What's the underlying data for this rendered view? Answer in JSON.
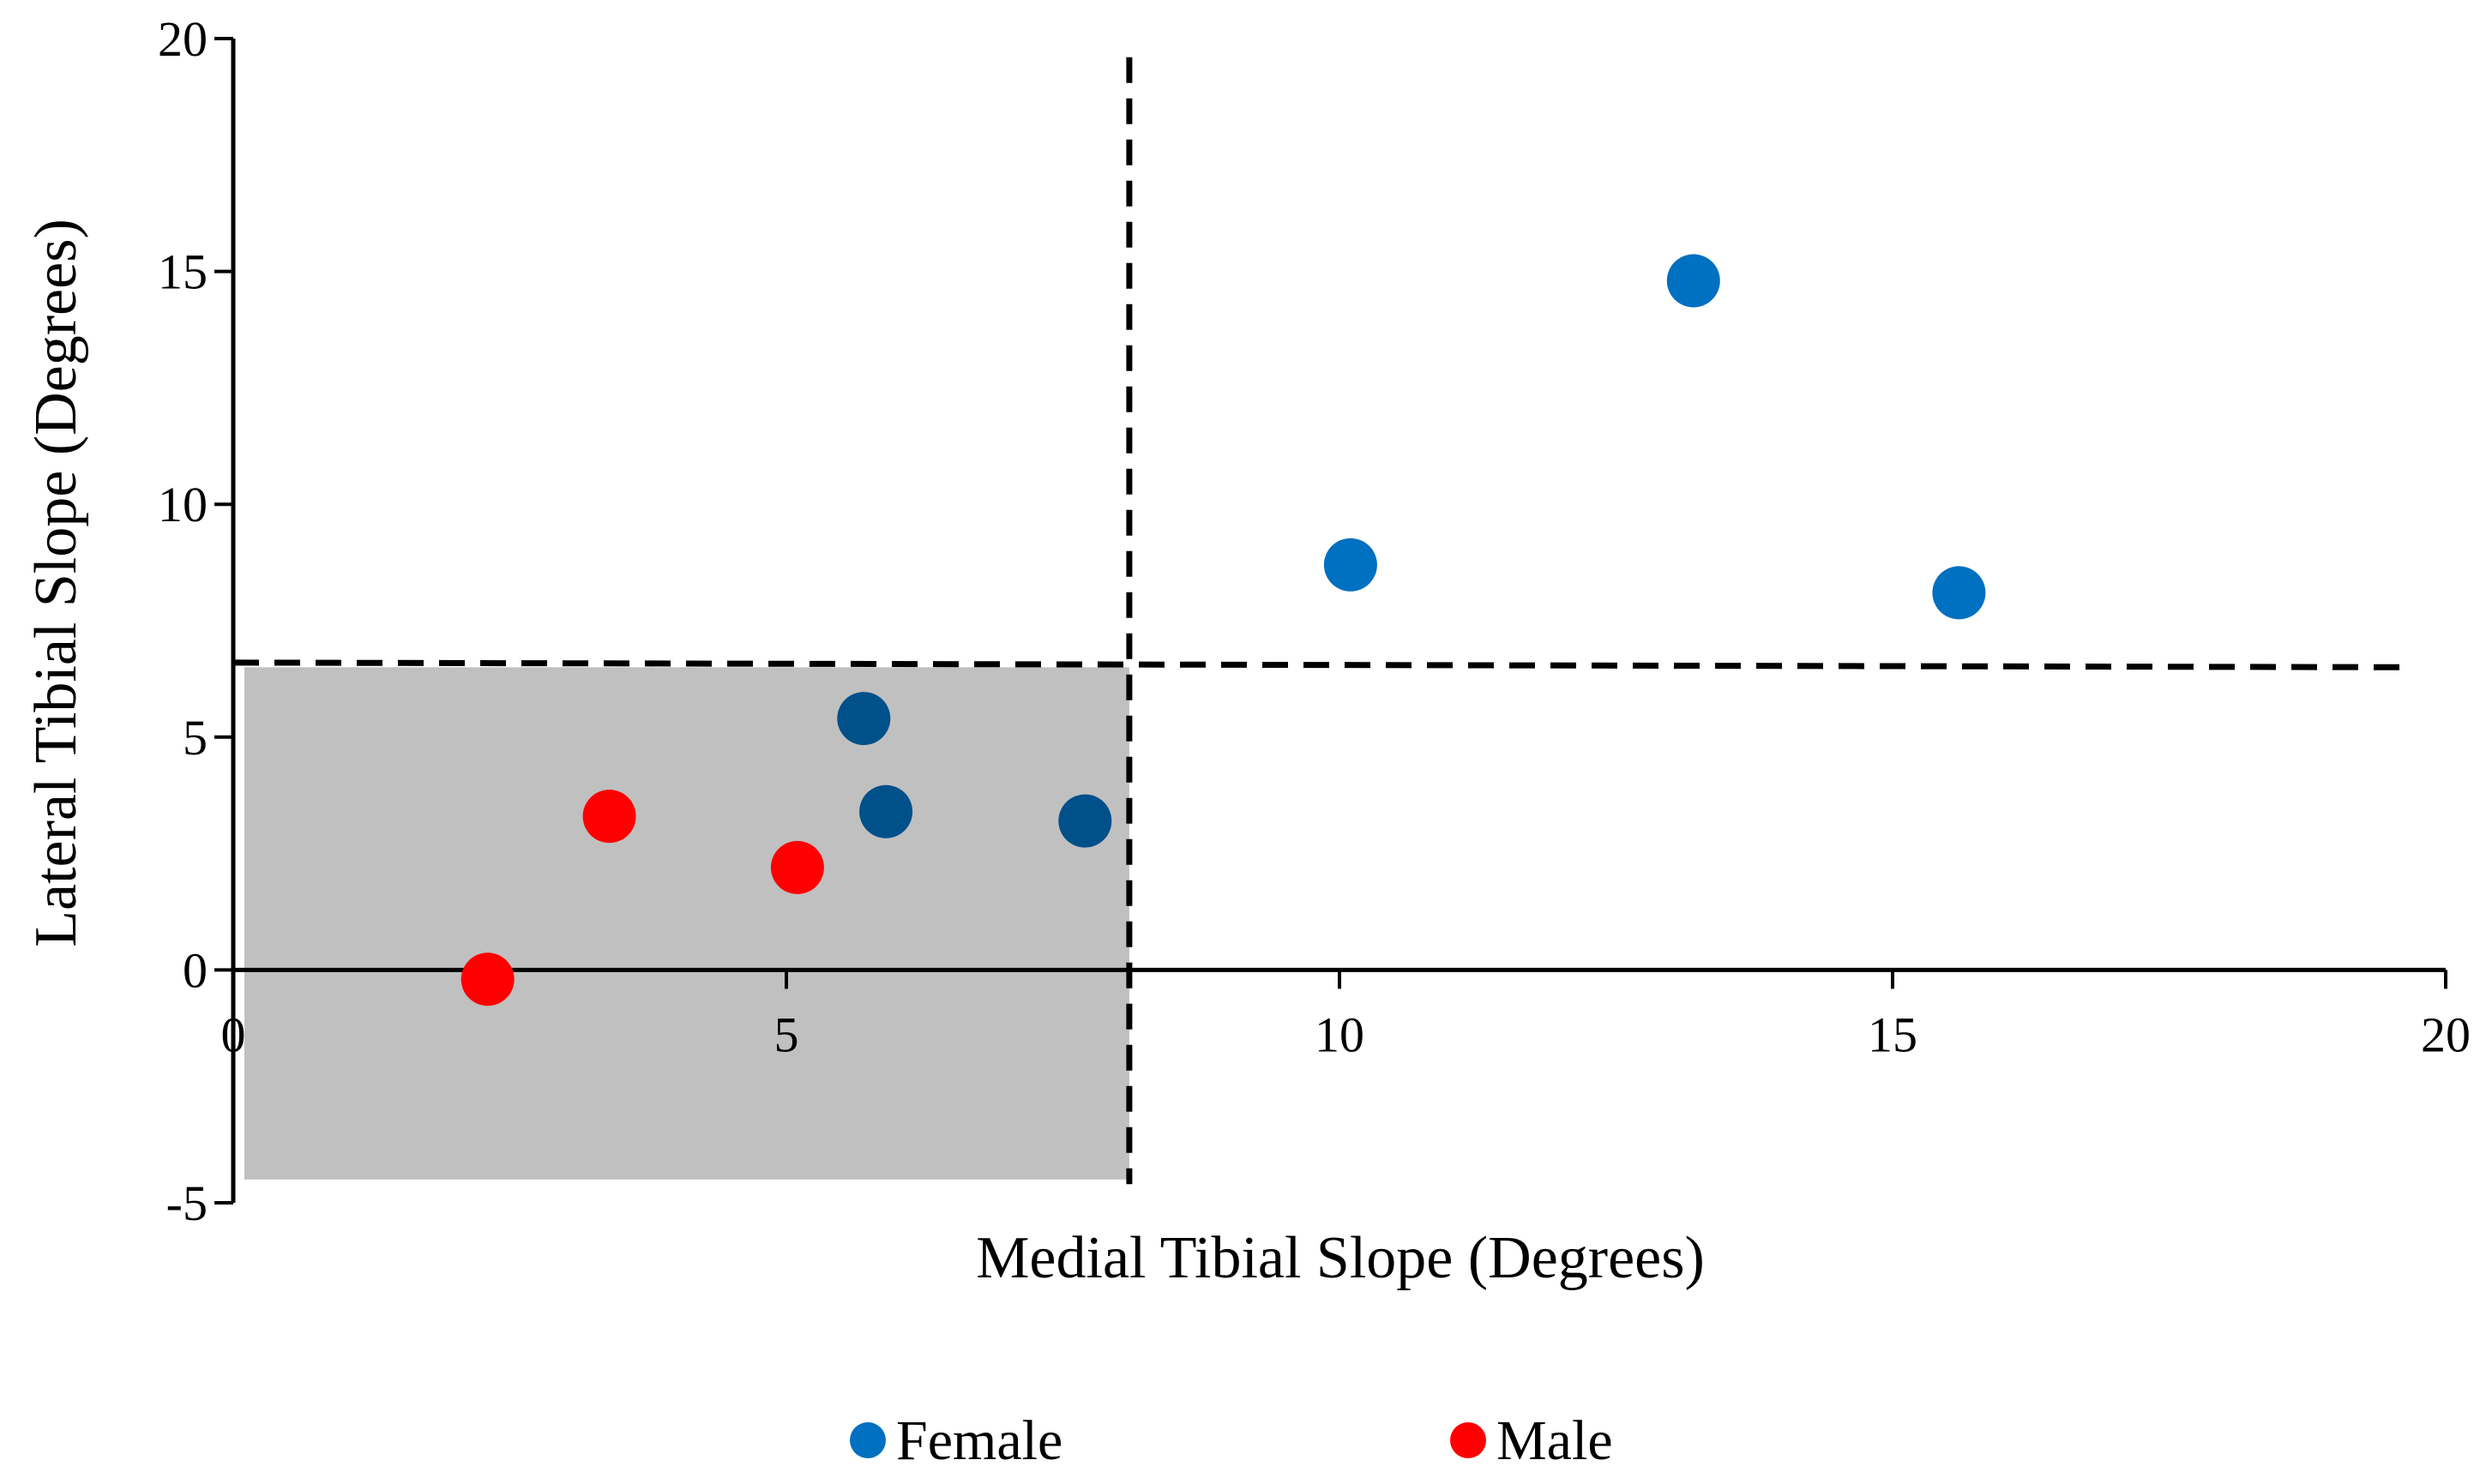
{
  "chart_data": {
    "type": "scatter",
    "title": "",
    "xlabel": "Medial Tibial Slope (Degrees)",
    "ylabel": "Lateral Tibial Slope (Degrees)",
    "xlim": [
      0,
      20
    ],
    "ylim": [
      -5,
      20
    ],
    "x_ticks": [
      0,
      5,
      10,
      15,
      20
    ],
    "y_ticks": [
      -5,
      0,
      5,
      10,
      15,
      20
    ],
    "x_tick_labels": [
      "0",
      "5",
      "10",
      "15",
      "20"
    ],
    "y_tick_labels": [
      "-5",
      "0",
      "5",
      "10",
      "15",
      "20"
    ],
    "grid": false,
    "legend_position": "bottom",
    "series": [
      {
        "name": "Female",
        "color": "#0070C0",
        "shaded_color": "#00508A",
        "points": [
          {
            "x": 5.7,
            "y": 5.4
          },
          {
            "x": 5.9,
            "y": 3.4
          },
          {
            "x": 7.7,
            "y": 3.2
          },
          {
            "x": 10.1,
            "y": 8.7
          },
          {
            "x": 13.2,
            "y": 14.8
          },
          {
            "x": 15.6,
            "y": 8.1
          }
        ]
      },
      {
        "name": "Male",
        "color": "#FF0000",
        "points": [
          {
            "x": 2.3,
            "y": -0.2
          },
          {
            "x": 3.4,
            "y": 3.3
          },
          {
            "x": 5.1,
            "y": 2.2
          }
        ]
      }
    ],
    "reference_lines": {
      "vertical_x": 8.1,
      "horizontal_y": [
        6.6,
        6.5
      ]
    },
    "shaded_region": {
      "x": [
        0.1,
        8.1
      ],
      "y": [
        -4.5,
        6.5
      ],
      "color": "#C0C0C0"
    }
  }
}
